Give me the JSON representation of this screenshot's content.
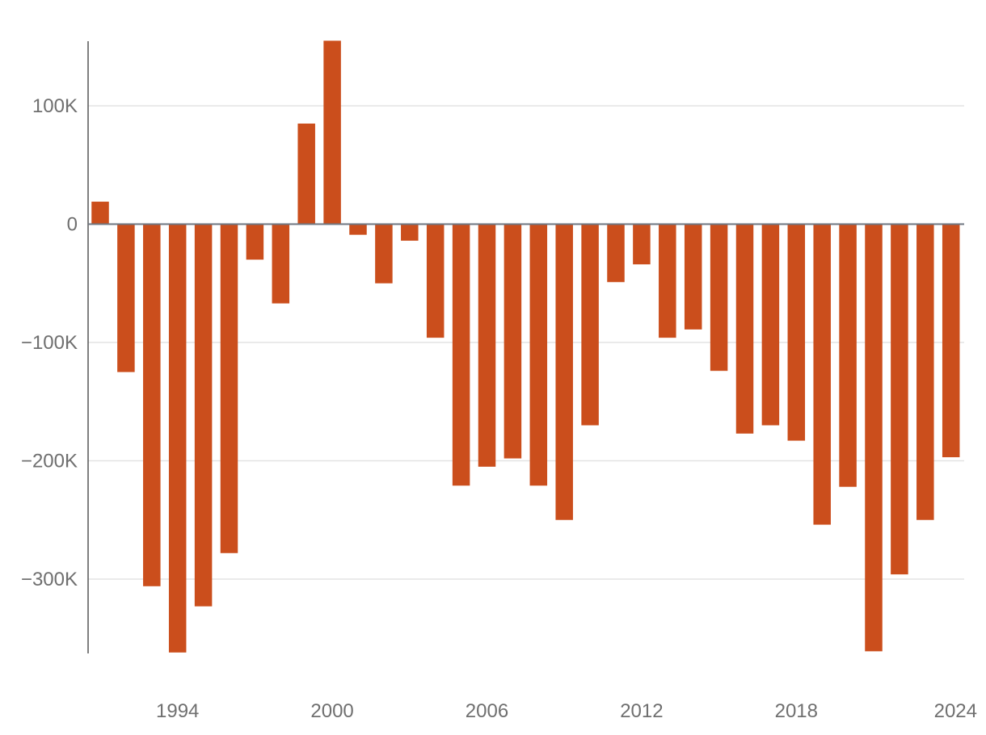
{
  "chart_data": {
    "type": "bar",
    "title": "",
    "xlabel": "",
    "ylabel": "",
    "ylim": [
      -362000,
      155000
    ],
    "bar_color": "#cb4e1c",
    "grid": true,
    "legend": "none",
    "x_ticks": [
      {
        "year": 1994,
        "label": "1994"
      },
      {
        "year": 2000,
        "label": "2000"
      },
      {
        "year": 2006,
        "label": "2006"
      },
      {
        "year": 2012,
        "label": "2012"
      },
      {
        "year": 2018,
        "label": "2018"
      },
      {
        "year": 2024,
        "label": "2024"
      }
    ],
    "y_ticks": [
      {
        "value": 100000,
        "label": "100K"
      },
      {
        "value": 0,
        "label": "0"
      },
      {
        "value": -100000,
        "label": "−100K"
      },
      {
        "value": -200000,
        "label": "−200K"
      },
      {
        "value": -300000,
        "label": "−300K"
      }
    ],
    "categories": [
      1991,
      1992,
      1993,
      1994,
      1995,
      1996,
      1997,
      1998,
      1999,
      2000,
      2001,
      2002,
      2003,
      2004,
      2005,
      2006,
      2007,
      2008,
      2009,
      2010,
      2011,
      2012,
      2013,
      2014,
      2015,
      2016,
      2017,
      2018,
      2019,
      2020,
      2021,
      2022,
      2023,
      2024
    ],
    "values": [
      19000,
      -125000,
      -306000,
      -362000,
      -323000,
      -278000,
      -30000,
      -67000,
      85000,
      155000,
      -9000,
      -50000,
      -14000,
      -96000,
      -221000,
      -205000,
      -198000,
      -221000,
      -250000,
      -170000,
      -49000,
      -34000,
      -96000,
      -89000,
      -124000,
      -177000,
      -170000,
      -183000,
      -254000,
      -222000,
      -361000,
      -296000,
      -250000,
      -197000
    ]
  }
}
